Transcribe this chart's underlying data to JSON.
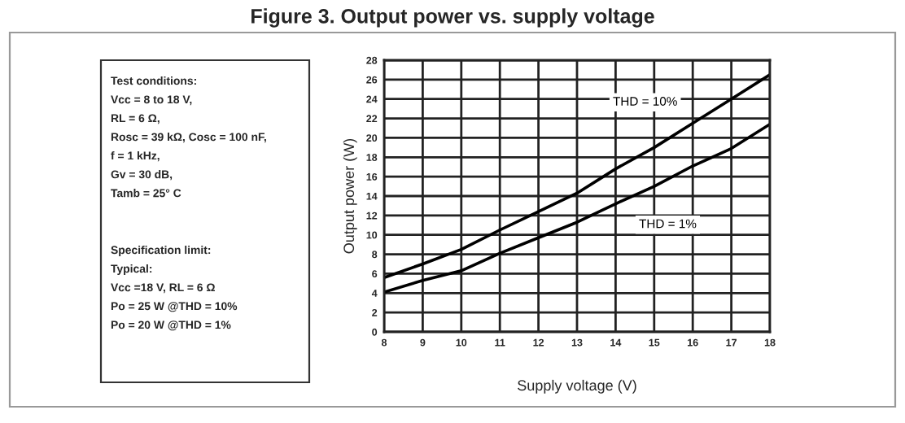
{
  "chart_data": {
    "type": "line",
    "title": "Figure 3. Output power vs. supply voltage",
    "xlabel": "Supply voltage (V)",
    "ylabel": "Output power (W)",
    "x": [
      8,
      9,
      10,
      11,
      12,
      13,
      14,
      15,
      16,
      17,
      18
    ],
    "series": [
      {
        "name": "THD = 10%",
        "color": "#000000",
        "values": [
          5.6,
          7.0,
          8.5,
          10.5,
          12.4,
          14.3,
          16.8,
          19.0,
          21.5,
          24.0,
          26.5
        ]
      },
      {
        "name": "THD = 1%",
        "color": "#000000",
        "values": [
          4.1,
          5.3,
          6.3,
          8.1,
          9.7,
          11.3,
          13.2,
          15.0,
          17.1,
          18.9,
          21.4
        ]
      }
    ],
    "xlim": [
      8,
      18
    ],
    "xticks": [
      8,
      9,
      10,
      11,
      12,
      13,
      14,
      15,
      16,
      17,
      18
    ],
    "ylim": [
      0,
      28
    ],
    "yticks": [
      0,
      2,
      4,
      6,
      8,
      10,
      12,
      14,
      16,
      18,
      20,
      22,
      24,
      26,
      28
    ],
    "grid": true,
    "marker": "none",
    "line_style": "solid",
    "annotations": [
      "Test conditions:\nVcc = 8 to 18 V,\nRL = 6 Ω,\nRosc = 39 kΩ, Cosc = 100 nF,\nf = 1 kHz,\nGv = 30 dB,\nTamb = 25° C",
      "Specification limit:\nTypical:\nVcc =18 V, RL = 6 Ω\nPo = 25 W @THD = 10%\nPo = 20 W @THD = 1%"
    ]
  }
}
